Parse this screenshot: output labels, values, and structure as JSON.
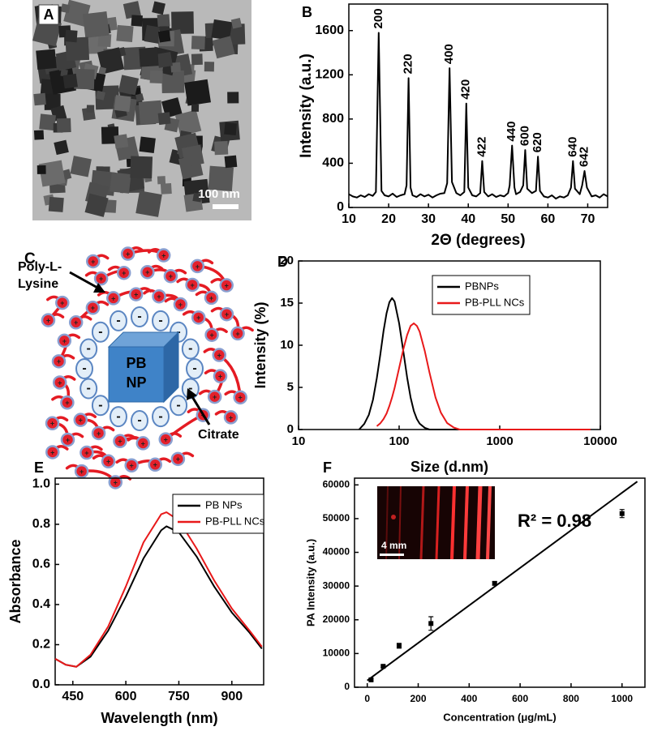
{
  "figure_panels": {
    "a": {
      "panel": "A",
      "scale_bar": "100 nm"
    },
    "c": {
      "panel": "C",
      "polymer_label_line1": "Poly-L-",
      "polymer_label_line2": "Lysine",
      "core_line1": "PB",
      "core_line2": "NP",
      "ligand_label": "Citrate",
      "anion": "-",
      "cation": "+"
    }
  },
  "chart_data": [
    {
      "type": "line",
      "panel": "B",
      "x_label": "2Θ (degrees)",
      "y_label": "Intensity (a.u.)",
      "x": [
        10,
        11,
        12,
        13,
        14,
        15,
        16,
        16.8,
        17.5,
        18.2,
        19,
        20,
        21,
        22,
        23,
        24,
        24.5,
        25,
        25.5,
        26,
        27,
        28,
        29,
        30,
        31,
        32,
        33,
        34,
        34.7,
        35.3,
        35.9,
        37,
        38,
        39,
        39.5,
        40,
        41,
        42,
        43,
        43.5,
        44,
        45,
        46,
        47,
        48,
        49,
        50,
        50.4,
        51,
        51.6,
        52,
        53,
        53.8,
        54.3,
        54.8,
        56,
        57,
        57.5,
        58,
        59,
        60,
        61,
        62,
        63,
        64,
        65,
        65.8,
        66.3,
        66.8,
        68,
        68.6,
        69.2,
        69.8,
        71,
        72,
        73,
        74,
        75
      ],
      "series": [
        {
          "color": "#000000",
          "values": [
            120,
            100,
            90,
            110,
            95,
            120,
            105,
            140,
            1580,
            150,
            110,
            100,
            125,
            95,
            110,
            120,
            200,
            1170,
            180,
            110,
            95,
            120,
            100,
            115,
            90,
            110,
            125,
            130,
            220,
            1260,
            230,
            130,
            110,
            140,
            940,
            180,
            110,
            100,
            130,
            420,
            140,
            100,
            120,
            95,
            110,
            100,
            130,
            200,
            560,
            180,
            120,
            140,
            200,
            520,
            170,
            130,
            150,
            460,
            150,
            100,
            90,
            110,
            80,
            100,
            90,
            110,
            180,
            420,
            170,
            120,
            200,
            330,
            180,
            100,
            110,
            90,
            120,
            100
          ]
        }
      ],
      "annotations": [
        {
          "label": "200",
          "x": 17.5,
          "y": 1580
        },
        {
          "label": "220",
          "x": 25,
          "y": 1170
        },
        {
          "label": "400",
          "x": 35.3,
          "y": 1260
        },
        {
          "label": "420",
          "x": 39.5,
          "y": 940
        },
        {
          "label": "422",
          "x": 43.5,
          "y": 420
        },
        {
          "label": "440",
          "x": 51,
          "y": 560
        },
        {
          "label": "600",
          "x": 54.3,
          "y": 520
        },
        {
          "label": "620",
          "x": 57.5,
          "y": 460
        },
        {
          "label": "640",
          "x": 66.3,
          "y": 420
        },
        {
          "label": "642",
          "x": 69.2,
          "y": 330
        }
      ],
      "xlim": [
        10,
        75
      ],
      "xticks": [
        10,
        20,
        30,
        40,
        50,
        60,
        70
      ],
      "ylim": [
        0,
        1840
      ],
      "yticks": [
        0,
        400,
        800,
        1200,
        1600
      ]
    },
    {
      "type": "line",
      "panel": "D",
      "x_label": "Size (d.nm)",
      "y_label": "Intensity (%)",
      "xlog": true,
      "x": [
        40,
        45,
        50,
        55,
        60,
        65,
        70,
        75,
        80,
        85,
        90,
        100,
        110,
        120,
        130,
        140,
        150,
        160,
        180,
        200,
        230,
        260,
        300,
        350,
        400,
        450,
        500,
        1000,
        8000
      ],
      "series": [
        {
          "name": "PBNPs",
          "color": "#000000",
          "values": [
            0,
            0.67,
            1.75,
            3.55,
            6.1,
            8.9,
            11.7,
            13.8,
            15.1,
            15.6,
            15.2,
            12.6,
            9.3,
            6.2,
            3.8,
            2.2,
            1.25,
            0.7,
            0.2,
            0,
            0,
            0,
            0,
            0,
            0,
            0,
            0,
            0,
            0
          ]
        },
        {
          "name": "PB-PLL NCs",
          "color": "#e8191a",
          "values": [
            null,
            null,
            null,
            null,
            0.4,
            0.74,
            1.25,
            1.9,
            2.8,
            3.8,
            4.9,
            7.3,
            9.5,
            11.2,
            12.3,
            12.6,
            12.3,
            11.6,
            9.3,
            6.8,
            3.8,
            2.0,
            0.77,
            0.23,
            0,
            0,
            0,
            0,
            0
          ]
        }
      ],
      "legend": "upper right",
      "xlim": [
        10,
        10000
      ],
      "xticks": [
        10,
        100,
        1000,
        10000
      ],
      "ylim": [
        0,
        20
      ],
      "yticks": [
        0,
        5,
        10,
        15,
        20
      ]
    },
    {
      "type": "line",
      "panel": "E",
      "x_label": "Wavelength (nm)",
      "y_label": "Absorbance",
      "x": [
        400,
        430,
        460,
        500,
        550,
        600,
        650,
        700,
        715,
        750,
        800,
        850,
        900,
        950,
        985
      ],
      "series": [
        {
          "name": "PB NPs",
          "color": "#000000",
          "values": [
            0.13,
            0.1,
            0.09,
            0.14,
            0.27,
            0.44,
            0.63,
            0.77,
            0.79,
            0.76,
            0.64,
            0.49,
            0.36,
            0.26,
            0.18
          ]
        },
        {
          "name": "PB-PLL NCs",
          "color": "#e8191a",
          "values": [
            0.13,
            0.1,
            0.09,
            0.15,
            0.29,
            0.49,
            0.71,
            0.85,
            0.86,
            0.82,
            0.68,
            0.52,
            0.38,
            0.27,
            0.19
          ]
        }
      ],
      "legend": "upper right",
      "xlim": [
        400,
        990
      ],
      "xticks": [
        450,
        600,
        750,
        900
      ],
      "ylim": [
        0,
        1.03
      ],
      "yticks": [
        {
          "value": 0,
          "label": "0.0"
        },
        0.2,
        0.4,
        0.6,
        0.8,
        {
          "value": 1,
          "label": "1.0"
        }
      ]
    },
    {
      "type": "scatter",
      "panel": "F",
      "x_label": "Concentration (μg/mL)",
      "y_label": "PA Intensity (a.u.)",
      "x": [
        15,
        62.5,
        125,
        250,
        500,
        1000
      ],
      "values": [
        2200,
        6200,
        12300,
        18900,
        30800,
        51500
      ],
      "errors": [
        300,
        300,
        700,
        2000,
        500,
        1200
      ],
      "color": "#000000",
      "fit": {
        "x": [
          0,
          1060
        ],
        "values": [
          2000,
          61000
        ]
      },
      "annotation": "R² = 0.98",
      "inset_scale_bar": "4 mm",
      "xlim": [
        -50,
        1090
      ],
      "xticks": [
        0,
        200,
        400,
        600,
        800,
        1000
      ],
      "ylim": [
        0,
        62000
      ],
      "yticks": [
        0,
        10000,
        20000,
        30000,
        40000,
        50000,
        60000
      ]
    }
  ]
}
